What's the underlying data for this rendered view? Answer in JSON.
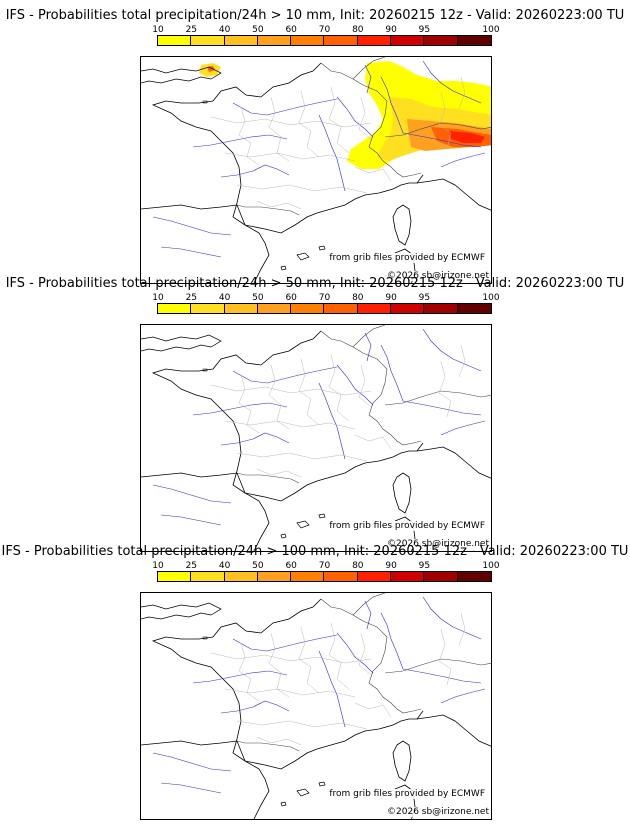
{
  "model": "IFS",
  "colorbar": {
    "labels": [
      "10",
      "25",
      "40",
      "50",
      "60",
      "70",
      "80",
      "90",
      "95",
      "100"
    ],
    "colors": [
      "#ffff00",
      "#ffe020",
      "#ffc020",
      "#ffa020",
      "#ff8000",
      "#ff6000",
      "#ff2000",
      "#d00000",
      "#a00000",
      "#600000"
    ]
  },
  "panels": [
    {
      "title": "IFS - Probabilities total precipitation/24h > 10 mm, Init: 20260215 12z - Valid: 20260223:00 TU",
      "source_credit": "from grib files provided by ECMWF",
      "copyright": "©2026 sb@irizone.net",
      "map": {
        "has_precip": true,
        "precip_region": "Rhine valley, Vosges, Alps and Jura (north-east France / Switzerland); small spot near Dover",
        "max_probability_class": "80"
      }
    },
    {
      "title": "IFS - Probabilities total precipitation/24h > 50 mm, Init: 20260215 12z - Valid: 20260223:00 TU",
      "source_credit": "from grib files provided by ECMWF",
      "copyright": "©2026 sb@irizone.net",
      "map": {
        "has_precip": false,
        "precip_region": "",
        "max_probability_class": ""
      }
    },
    {
      "title": "IFS - Probabilities total precipitation/24h > 100 mm, Init: 20260215 12z - Valid: 20260223:00 TU",
      "source_credit": "from grib files provided by ECMWF",
      "copyright": "©2026 sb@irizone.net",
      "map": {
        "has_precip": false,
        "precip_region": "",
        "max_probability_class": ""
      }
    }
  ]
}
